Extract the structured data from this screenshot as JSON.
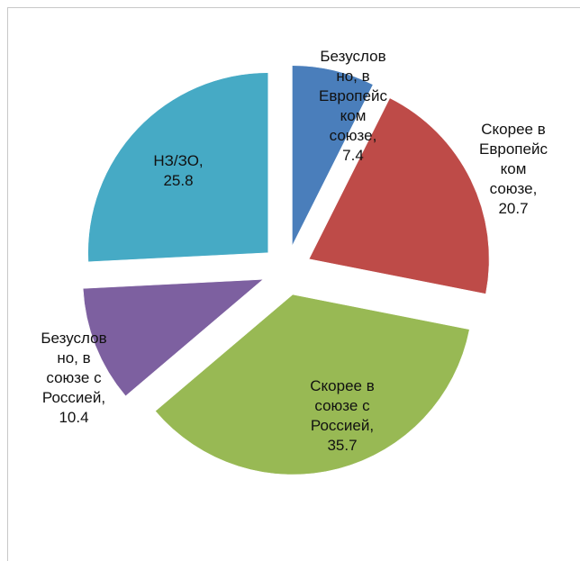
{
  "chart_data": {
    "type": "pie",
    "categories": [
      "Безусловно, в Европейском союзе,",
      "Скорее в Европейском союзе,",
      "Скорее в союзе с Россией,",
      "Безусловно, в союзе с Россией,",
      "НЗ/ЗО,"
    ],
    "values": [
      7.4,
      20.7,
      35.7,
      10.4,
      25.8
    ],
    "colors": [
      "#4a7ebb",
      "#be4b48",
      "#98b954",
      "#7d60a0",
      "#46aac5"
    ]
  }
}
